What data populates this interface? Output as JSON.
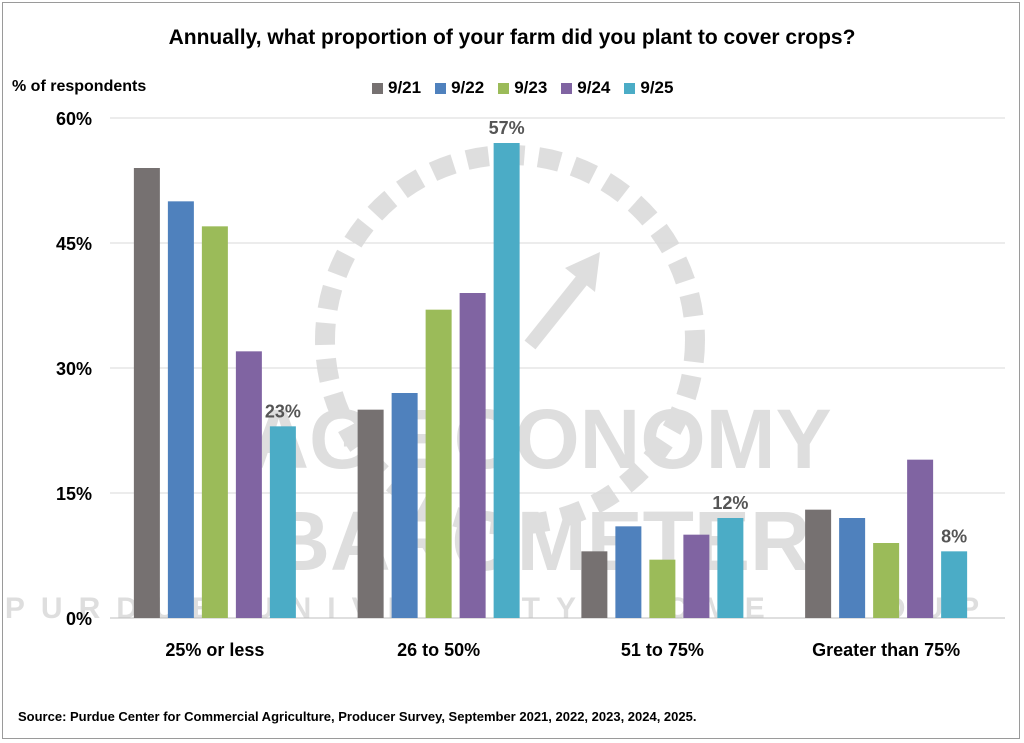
{
  "chart_data": {
    "type": "bar",
    "title": "Annually, what proportion of your farm did you plant to cover crops?",
    "ylabel": "% of respondents",
    "xlabel": "",
    "ylim": [
      0,
      60
    ],
    "yticks": [
      0,
      15,
      30,
      45,
      60
    ],
    "ytick_labels": [
      "0%",
      "15%",
      "30%",
      "45%",
      "60%"
    ],
    "grid": true,
    "legend_position": "top",
    "categories": [
      "25% or less",
      "26 to 50%",
      "51 to 75%",
      "Greater than 75%"
    ],
    "series": [
      {
        "name": "9/21",
        "color": "#767171",
        "values": [
          54,
          25,
          8,
          13
        ]
      },
      {
        "name": "9/22",
        "color": "#4f81bd",
        "values": [
          50,
          27,
          11,
          12
        ]
      },
      {
        "name": "9/23",
        "color": "#9bbb59",
        "values": [
          47,
          37,
          7,
          9
        ]
      },
      {
        "name": "9/24",
        "color": "#8064a2",
        "values": [
          32,
          39,
          10,
          19
        ]
      },
      {
        "name": "9/25",
        "color": "#4bacc6",
        "values": [
          23,
          57,
          12,
          8
        ]
      }
    ],
    "data_labels": [
      {
        "series": "9/25",
        "category": "25% or less",
        "text": "23%"
      },
      {
        "series": "9/25",
        "category": "26 to 50%",
        "text": "57%"
      },
      {
        "series": "9/25",
        "category": "51 to 75%",
        "text": "12%"
      },
      {
        "series": "9/25",
        "category": "Greater than 75%",
        "text": "8%"
      }
    ],
    "source": "Source: Purdue Center for Commercial Agriculture, Producer Survey, September 2021, 2022, 2023, 2024, 2025."
  },
  "watermark": {
    "line1": "AG ECONOMY",
    "line2": "BAROMETER",
    "line3": "PURDUE UNIVERSITY · CME GROUP"
  }
}
